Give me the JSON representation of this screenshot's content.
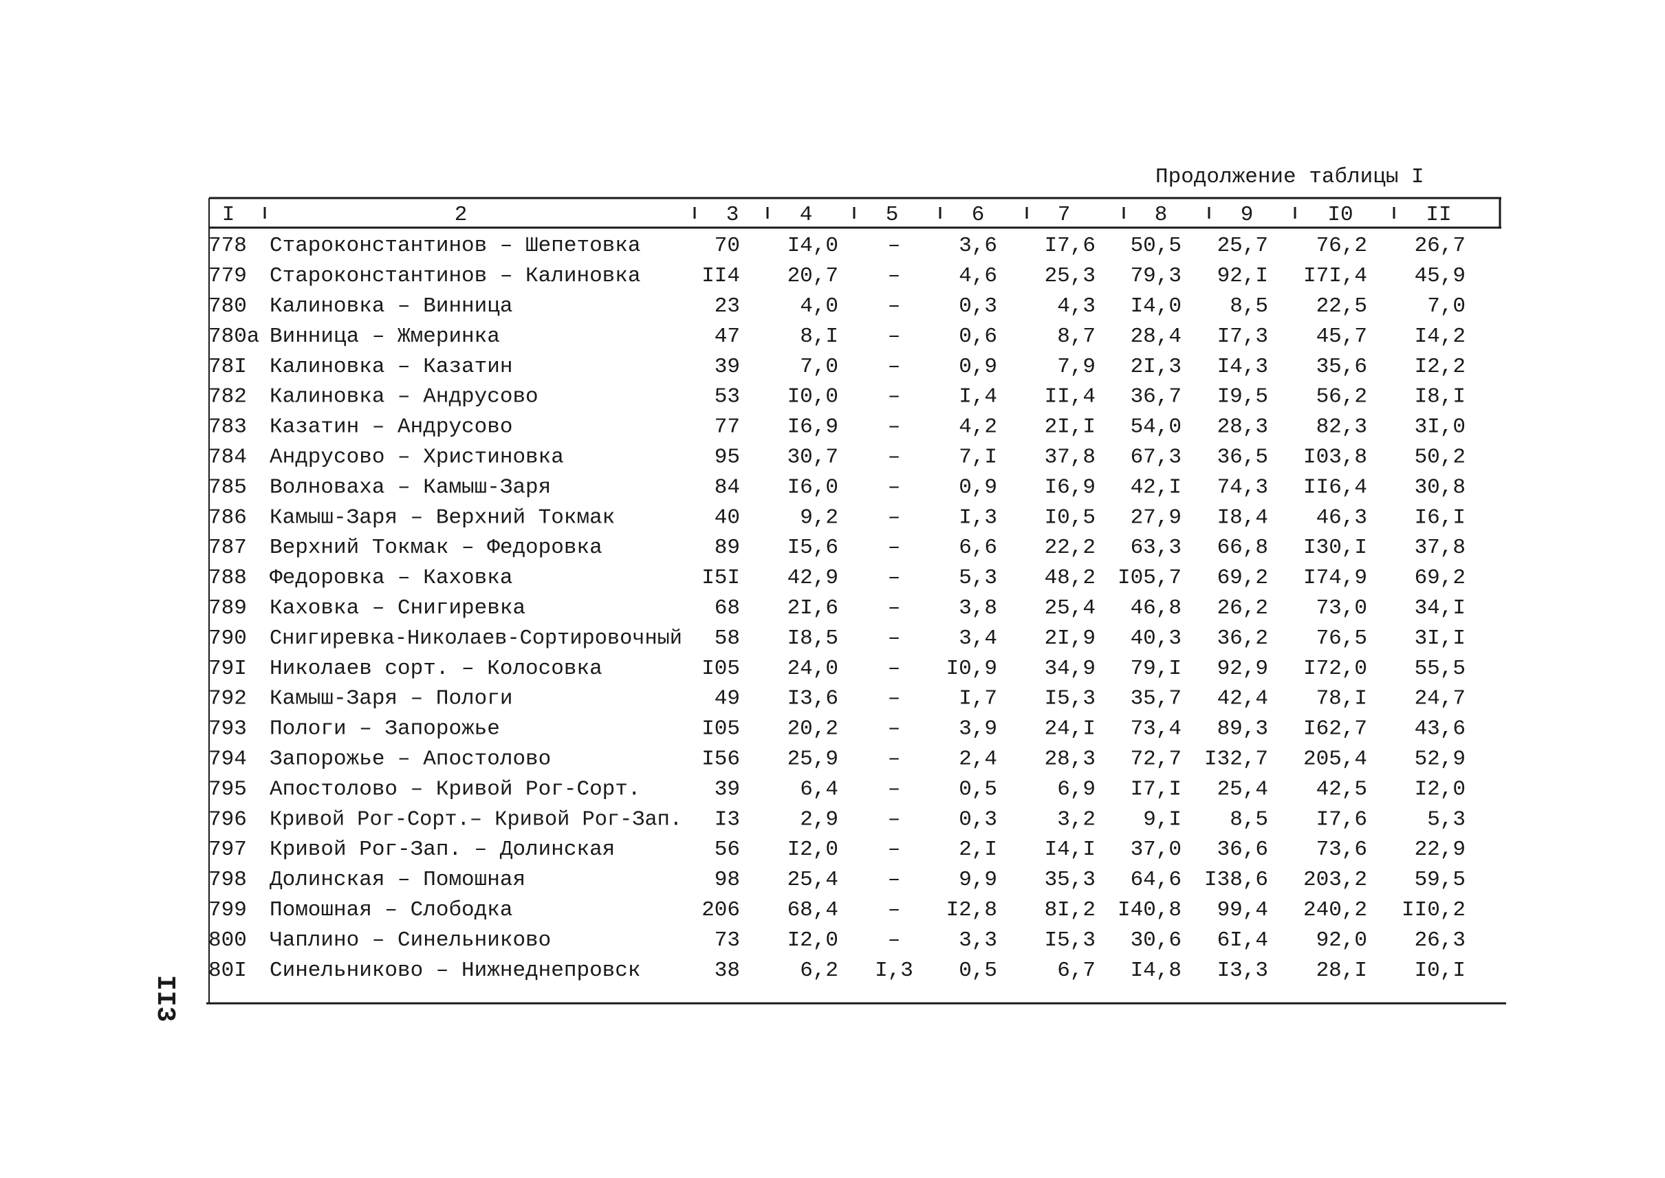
{
  "caption": "Продолжение таблицы I",
  "page_number": "II3",
  "table": {
    "header": [
      "I",
      "2",
      "3",
      "4",
      "5",
      "6",
      "7",
      "8",
      "9",
      "I0",
      "II"
    ],
    "rows": [
      [
        "778",
        "Староконстантинов – Шепетовка",
        "70",
        "I4,0",
        "–",
        "3,6",
        "I7,6",
        "50,5",
        "25,7",
        "76,2",
        "26,7"
      ],
      [
        "779",
        "Староконстантинов – Калиновка",
        "II4",
        "20,7",
        "–",
        "4,6",
        "25,3",
        "79,3",
        "92,I",
        "I7I,4",
        "45,9"
      ],
      [
        "780",
        "Калиновка – Винница",
        "23",
        "4,0",
        "–",
        "0,3",
        "4,3",
        "I4,0",
        "8,5",
        "22,5",
        "7,0"
      ],
      [
        "780а",
        "Винница – Жмеринка",
        "47",
        "8,I",
        "–",
        "0,6",
        "8,7",
        "28,4",
        "I7,3",
        "45,7",
        "I4,2"
      ],
      [
        "78I",
        "Калиновка – Казатин",
        "39",
        "7,0",
        "–",
        "0,9",
        "7,9",
        "2I,3",
        "I4,3",
        "35,6",
        "I2,2"
      ],
      [
        "782",
        "Калиновка – Андрусово",
        "53",
        "I0,0",
        "–",
        "I,4",
        "II,4",
        "36,7",
        "I9,5",
        "56,2",
        "I8,I"
      ],
      [
        "783",
        "Казатин – Андрусово",
        "77",
        "I6,9",
        "–",
        "4,2",
        "2I,I",
        "54,0",
        "28,3",
        "82,3",
        "3I,0"
      ],
      [
        "784",
        "Андрусово – Христиновка",
        "95",
        "30,7",
        "–",
        "7,I",
        "37,8",
        "67,3",
        "36,5",
        "I03,8",
        "50,2"
      ],
      [
        "785",
        "Волноваха – Камыш-Заря",
        "84",
        "I6,0",
        "–",
        "0,9",
        "I6,9",
        "42,I",
        "74,3",
        "II6,4",
        "30,8"
      ],
      [
        "786",
        "Камыш-Заря – Верхний Токмак",
        "40",
        "9,2",
        "–",
        "I,3",
        "I0,5",
        "27,9",
        "I8,4",
        "46,3",
        "I6,I"
      ],
      [
        "787",
        "Верхний Токмак – Федоровка",
        "89",
        "I5,6",
        "–",
        "6,6",
        "22,2",
        "63,3",
        "66,8",
        "I30,I",
        "37,8"
      ],
      [
        "788",
        "Федоровка – Каховка",
        "I5I",
        "42,9",
        "–",
        "5,3",
        "48,2",
        "I05,7",
        "69,2",
        "I74,9",
        "69,2"
      ],
      [
        "789",
        "Каховка – Снигиревка",
        "68",
        "2I,6",
        "–",
        "3,8",
        "25,4",
        "46,8",
        "26,2",
        "73,0",
        "34,I"
      ],
      [
        "790",
        "Снигиревка-Николаев-Сортировочный",
        "58",
        "I8,5",
        "–",
        "3,4",
        "2I,9",
        "40,3",
        "36,2",
        "76,5",
        "3I,I"
      ],
      [
        "79I",
        "Николаев сорт. – Колосовка",
        "I05",
        "24,0",
        "–",
        "I0,9",
        "34,9",
        "79,I",
        "92,9",
        "I72,0",
        "55,5"
      ],
      [
        "792",
        "Камыш-Заря – Пологи",
        "49",
        "I3,6",
        "–",
        "I,7",
        "I5,3",
        "35,7",
        "42,4",
        "78,I",
        "24,7"
      ],
      [
        "793",
        "Пологи – Запорожье",
        "I05",
        "20,2",
        "–",
        "3,9",
        "24,I",
        "73,4",
        "89,3",
        "I62,7",
        "43,6"
      ],
      [
        "794",
        "Запорожье – Апостолово",
        "I56",
        "25,9",
        "–",
        "2,4",
        "28,3",
        "72,7",
        "I32,7",
        "205,4",
        "52,9"
      ],
      [
        "795",
        "Апостолово – Кривой Рог-Сорт.",
        "39",
        "6,4",
        "–",
        "0,5",
        "6,9",
        "I7,I",
        "25,4",
        "42,5",
        "I2,0"
      ],
      [
        "796",
        "Кривой Рог-Сорт.– Кривой Рог-Зап.",
        "I3",
        "2,9",
        "–",
        "0,3",
        "3,2",
        "9,I",
        "8,5",
        "I7,6",
        "5,3"
      ],
      [
        "797",
        "Кривой Рог-Зап. – Долинская",
        "56",
        "I2,0",
        "–",
        "2,I",
        "I4,I",
        "37,0",
        "36,6",
        "73,6",
        "22,9"
      ],
      [
        "798",
        "Долинская – Помошная",
        "98",
        "25,4",
        "–",
        "9,9",
        "35,3",
        "64,6",
        "I38,6",
        "203,2",
        "59,5"
      ],
      [
        "799",
        "Помошная – Слободка",
        "206",
        "68,4",
        "–",
        "I2,8",
        "8I,2",
        "I40,8",
        "99,4",
        "240,2",
        "II0,2"
      ],
      [
        "800",
        "Чаплино – Синельниково",
        "73",
        "I2,0",
        "–",
        "3,3",
        "I5,3",
        "30,6",
        "6I,4",
        "92,0",
        "26,3"
      ],
      [
        "80I",
        "Синельниково – Нижнеднепровск",
        "38",
        "6,2",
        "I,3",
        "0,5",
        "6,7",
        "I4,8",
        "I3,3",
        "28,I",
        "I0,I"
      ]
    ]
  }
}
